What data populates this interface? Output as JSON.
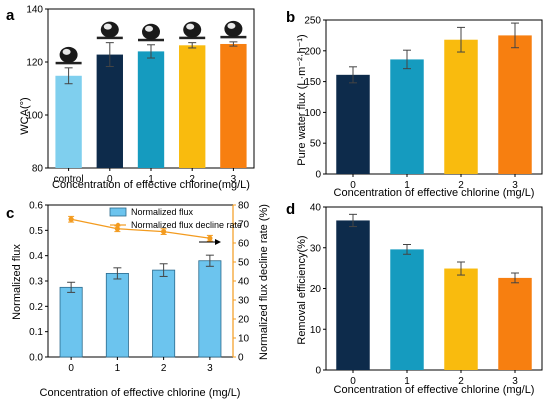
{
  "chart_data": [
    {
      "panel": "a",
      "type": "bar",
      "categories": [
        "control",
        "0",
        "1",
        "2",
        "3"
      ],
      "values": [
        114.8,
        122.8,
        124.0,
        126.3,
        126.8
      ],
      "errors": [
        3.0,
        4.5,
        2.5,
        1.0,
        0.8
      ],
      "colors": [
        "#7fcfee",
        "#0d2b4b",
        "#159bbf",
        "#f9bb0e",
        "#f77f10"
      ],
      "ylim": [
        80,
        140
      ],
      "yticks": [
        "80",
        "100",
        "120",
        "140"
      ],
      "ylabel": "WCA(°)",
      "xlabel": "Concentration of effective chlorine(mg/L)",
      "droplet_icons": true
    },
    {
      "panel": "b",
      "type": "bar",
      "categories": [
        "0",
        "1",
        "2",
        "3"
      ],
      "values": [
        161,
        186,
        218,
        225
      ],
      "errors": [
        13,
        15,
        20,
        20
      ],
      "colors": [
        "#0d2b4b",
        "#159bbf",
        "#f9bb0e",
        "#f77f10"
      ],
      "ylim": [
        0,
        250
      ],
      "yticks": [
        "0",
        "50",
        "100",
        "150",
        "200",
        "250"
      ],
      "ylabel": "Pure water flux (L·m⁻²·h⁻¹)",
      "xlabel": "Concentration of effective chlorine (mg/L)"
    },
    {
      "panel": "c",
      "type": "bar+line",
      "categories": [
        "0",
        "1",
        "2",
        "3"
      ],
      "series": [
        {
          "name": "Normalized flux",
          "type": "bar",
          "axis": "left",
          "values": [
            0.275,
            0.33,
            0.343,
            0.38
          ],
          "errors": [
            0.02,
            0.022,
            0.025,
            0.022
          ],
          "color": "#6cc4ee"
        },
        {
          "name": "Normalized flux decline rate",
          "type": "line",
          "axis": "right",
          "values": [
            72.5,
            67.5,
            66.0,
            62.5
          ],
          "errors": [
            1.5,
            1.5,
            1.5,
            1.5
          ],
          "color": "#f39b1f"
        }
      ],
      "ylim": [
        0,
        0.6
      ],
      "yticks": [
        "0.0",
        "0.1",
        "0.2",
        "0.3",
        "0.4",
        "0.5",
        "0.6"
      ],
      "y2lim": [
        0,
        80
      ],
      "y2ticks": [
        "0",
        "10",
        "20",
        "30",
        "40",
        "50",
        "60",
        "70",
        "80"
      ],
      "ylabel": "Normalized flux",
      "y2label": "Normalized flux decline rate (%)",
      "xlabel": "Concentration of effective chlorine (mg/L)",
      "legend": "top-right"
    },
    {
      "panel": "d",
      "type": "bar",
      "categories": [
        "0",
        "1",
        "2",
        "3"
      ],
      "values": [
        36.7,
        29.6,
        24.9,
        22.6
      ],
      "errors": [
        1.5,
        1.2,
        1.6,
        1.2
      ],
      "colors": [
        "#0d2b4b",
        "#159bbf",
        "#f9bb0e",
        "#f77f10"
      ],
      "ylim": [
        0,
        40
      ],
      "yticks": [
        "0",
        "10",
        "20",
        "30",
        "40"
      ],
      "ylabel": "Removal efficiency(%)",
      "xlabel": "Concentration of effective chlorine (mg/L)"
    }
  ]
}
